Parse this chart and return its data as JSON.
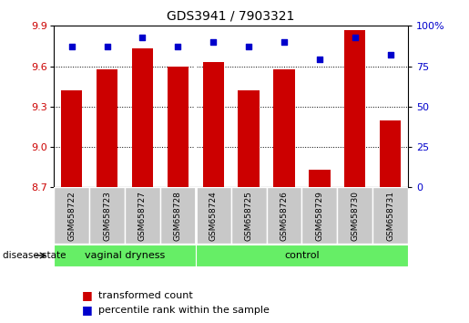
{
  "title": "GDS3941 / 7903321",
  "samples": [
    "GSM658722",
    "GSM658723",
    "GSM658727",
    "GSM658728",
    "GSM658724",
    "GSM658725",
    "GSM658726",
    "GSM658729",
    "GSM658730",
    "GSM658731"
  ],
  "bar_values": [
    9.42,
    9.58,
    9.73,
    9.6,
    9.63,
    9.42,
    9.58,
    8.83,
    9.87,
    9.2
  ],
  "percentile_values": [
    87,
    87,
    93,
    87,
    90,
    87,
    90,
    79,
    93,
    82
  ],
  "y_min": 8.7,
  "y_max": 9.9,
  "y_ticks": [
    8.7,
    9.0,
    9.3,
    9.6,
    9.9
  ],
  "y2_ticks": [
    0,
    25,
    50,
    75,
    100
  ],
  "bar_color": "#cc0000",
  "dot_color": "#0000cc",
  "group1_label": "vaginal dryness",
  "group2_label": "control",
  "group1_indices": [
    0,
    1,
    2,
    3
  ],
  "group2_indices": [
    4,
    5,
    6,
    7,
    8,
    9
  ],
  "group_bg_color": "#66ee66",
  "tick_label_bg": "#c8c8c8",
  "legend_bar_label": "transformed count",
  "legend_dot_label": "percentile rank within the sample",
  "disease_state_label": "disease state"
}
